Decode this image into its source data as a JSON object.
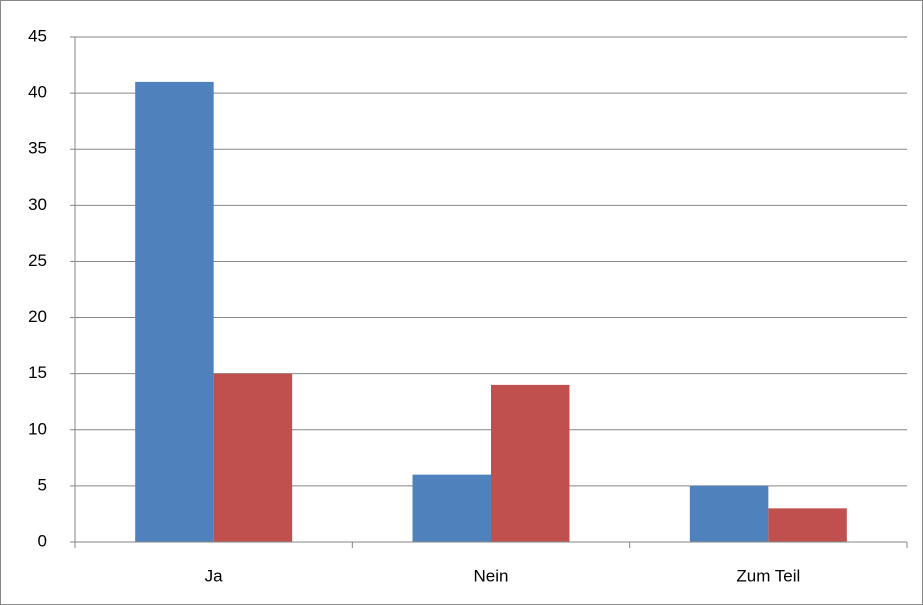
{
  "chart_data": {
    "type": "bar",
    "categories": [
      "Ja",
      "Nein",
      "Zum Teil"
    ],
    "series": [
      {
        "color": "#4f81bd",
        "values": [
          41,
          6,
          5
        ]
      },
      {
        "color": "#c0504d",
        "values": [
          15,
          14,
          3
        ]
      }
    ],
    "ylim": [
      0,
      45
    ],
    "yticks": [
      0,
      5,
      10,
      15,
      20,
      25,
      30,
      35,
      40,
      45
    ],
    "grid": true
  }
}
